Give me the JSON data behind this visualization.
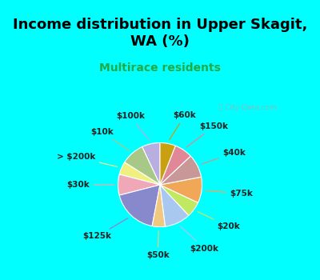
{
  "title": "Income distribution in Upper Skagit,\nWA (%)",
  "subtitle": "Multirace residents",
  "title_color": "#000000",
  "subtitle_color": "#22aa44",
  "bg_cyan": "#00ffff",
  "chart_bg_top": "#e8f8f0",
  "chart_bg_bottom": "#c8eee0",
  "labels": [
    "$100k",
    "$10k",
    "> $200k",
    "$30k",
    "$125k",
    "$50k",
    "$200k",
    "$20k",
    "$75k",
    "$40k",
    "$150k",
    "$60k"
  ],
  "sizes": [
    7,
    9,
    5,
    8,
    18,
    5,
    10,
    6,
    10,
    9,
    7,
    6
  ],
  "colors": [
    "#b8aee0",
    "#a8c888",
    "#f0f080",
    "#f0a8b8",
    "#8888cc",
    "#f0c880",
    "#a8c8f0",
    "#c0e860",
    "#f0a858",
    "#c89898",
    "#e08898",
    "#c8a010"
  ],
  "label_colors": [
    "#b8aee0",
    "#a8c888",
    "#f0f080",
    "#f0a8b8",
    "#8888cc",
    "#f0c880",
    "#a8c8f0",
    "#c0e860",
    "#f0a858",
    "#c89898",
    "#e08898",
    "#c8a010"
  ],
  "start_angle": 90,
  "title_fontsize": 13,
  "subtitle_fontsize": 10,
  "label_fontsize": 7.5
}
